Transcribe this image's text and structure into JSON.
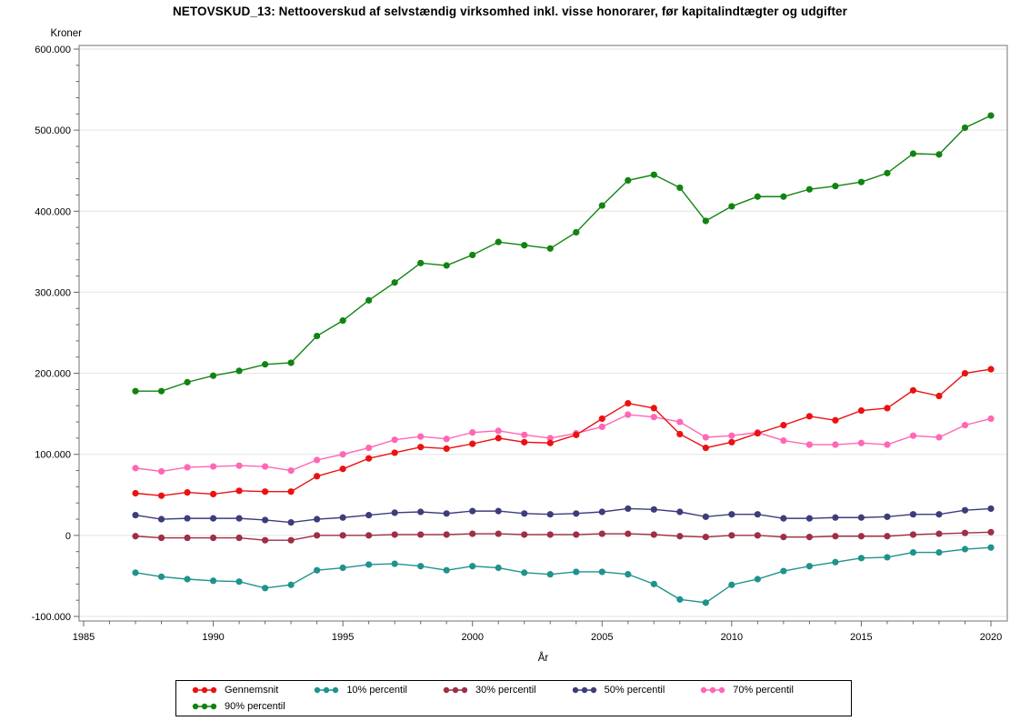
{
  "page": {
    "title": "NETOVSKUD_13: Nettooverskud af selvstændig virksomhed inkl. visse honorarer, før kapitalindtægter og udgifter"
  },
  "chart_data": {
    "type": "line",
    "title": "NETOVSKUD_13: Nettooverskud af selvstændig virksomhed inkl. visse honorarer, før kapitalindtægter og udgifter",
    "ylabel": "Kroner",
    "xlabel": "År",
    "xlim": [
      1985,
      2020
    ],
    "ylim": [
      -100000,
      600000
    ],
    "grid": "horizontal-major-only",
    "legend_position": "bottom",
    "x_ticks_major": [
      1985,
      1990,
      1995,
      2000,
      2005,
      2010,
      2015,
      2020
    ],
    "x_tick_labels": [
      "1985",
      "1990",
      "1995",
      "2000",
      "2005",
      "2010",
      "2015",
      "2020"
    ],
    "x_minor_step": 1,
    "y_ticks_major": [
      -100000,
      0,
      100000,
      200000,
      300000,
      400000,
      500000,
      600000
    ],
    "y_tick_labels": [
      "-100.000",
      "0",
      "100.000",
      "200.000",
      "300.000",
      "400.000",
      "500.000",
      "600.000"
    ],
    "y_minor_step": 20000,
    "x": [
      1987,
      1988,
      1989,
      1990,
      1991,
      1992,
      1993,
      1994,
      1995,
      1996,
      1997,
      1998,
      1999,
      2000,
      2001,
      2002,
      2003,
      2004,
      2005,
      2006,
      2007,
      2008,
      2009,
      2010,
      2011,
      2012,
      2013,
      2014,
      2015,
      2016,
      2017,
      2018,
      2019,
      2020
    ],
    "series": [
      {
        "name": "Gennemsnit",
        "color": "#ec1111",
        "values": [
          52000,
          49000,
          53000,
          51000,
          55000,
          54000,
          54000,
          73000,
          82000,
          95000,
          102000,
          109000,
          107000,
          113000,
          120000,
          115000,
          114000,
          124000,
          144000,
          163000,
          157000,
          125000,
          108000,
          115000,
          126000,
          136000,
          147000,
          142000,
          154000,
          157000,
          179000,
          172000,
          200000,
          205000
        ]
      },
      {
        "name": "10% percentil",
        "color": "#1e938d",
        "values": [
          -46000,
          -51000,
          -54000,
          -56000,
          -57000,
          -65000,
          -61000,
          -43000,
          -40000,
          -36000,
          -35000,
          -38000,
          -43000,
          -38000,
          -40000,
          -46000,
          -48000,
          -45000,
          -45000,
          -48000,
          -60000,
          -79000,
          -83000,
          -61000,
          -54000,
          -44000,
          -38000,
          -33000,
          -28000,
          -27000,
          -21000,
          -21000,
          -17000,
          -15000
        ]
      },
      {
        "name": "30% percentil",
        "color": "#9e2f44",
        "values": [
          -1000,
          -3000,
          -3000,
          -3000,
          -3000,
          -6000,
          -6000,
          0,
          0,
          0,
          1000,
          1000,
          1000,
          2000,
          2000,
          1000,
          1000,
          1000,
          2000,
          2000,
          1000,
          -1000,
          -2000,
          0,
          0,
          -2000,
          -2000,
          -1000,
          -1000,
          -1000,
          1000,
          2000,
          3000,
          4000
        ]
      },
      {
        "name": "50% percentil",
        "color": "#3d3d7c",
        "values": [
          25000,
          20000,
          21000,
          21000,
          21000,
          19000,
          16000,
          20000,
          22000,
          25000,
          28000,
          29000,
          27000,
          30000,
          30000,
          27000,
          26000,
          27000,
          29000,
          33000,
          32000,
          29000,
          23000,
          26000,
          26000,
          21000,
          21000,
          22000,
          22000,
          23000,
          26000,
          26000,
          31000,
          33000
        ]
      },
      {
        "name": "70% percentil",
        "color": "#ff66b5",
        "values": [
          83000,
          79000,
          84000,
          85000,
          86000,
          85000,
          80000,
          93000,
          100000,
          108000,
          118000,
          122000,
          119000,
          127000,
          129000,
          124000,
          120000,
          126000,
          134000,
          149000,
          146000,
          140000,
          121000,
          123000,
          127000,
          117000,
          112000,
          112000,
          114000,
          112000,
          123000,
          121000,
          136000,
          144000
        ]
      },
      {
        "name": "90% percentil",
        "color": "#118311",
        "values": [
          178000,
          178000,
          189000,
          197000,
          203000,
          211000,
          213000,
          246000,
          265000,
          290000,
          312000,
          336000,
          333000,
          346000,
          362000,
          358000,
          354000,
          374000,
          407000,
          438000,
          445000,
          429000,
          388000,
          406000,
          418000,
          418000,
          427000,
          431000,
          436000,
          447000,
          471000,
          470000,
          503000,
          518000
        ]
      }
    ],
    "legend_rows": [
      [
        0,
        1,
        2,
        3,
        4
      ],
      [
        5
      ]
    ]
  },
  "colors": {
    "background": "#ffffff",
    "grid": "#e3e3e3",
    "axis_border": "#8a8a8a",
    "tick": "#666666",
    "text": "#000000"
  }
}
